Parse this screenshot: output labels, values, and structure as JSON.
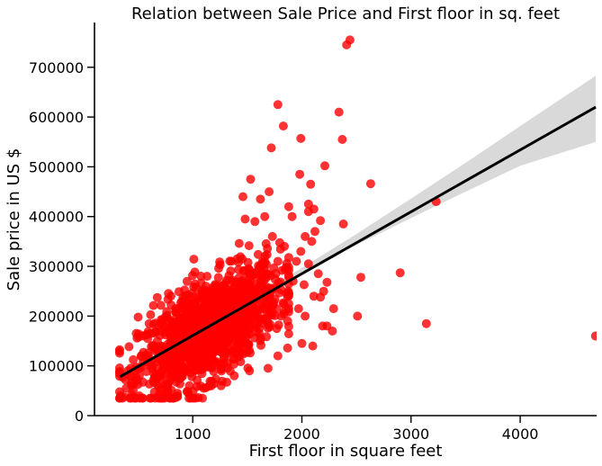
{
  "chart_data": {
    "type": "scatter",
    "title": "Relation between Sale Price and First floor in sq. feet",
    "xlabel": "First floor in square feet",
    "ylabel": "Sale price in US $",
    "xlim": [
      100,
      4700
    ],
    "ylim": [
      0,
      790000
    ],
    "x_ticks": [
      1000,
      2000,
      3000,
      4000
    ],
    "y_ticks": [
      0,
      100000,
      200000,
      300000,
      400000,
      500000,
      600000,
      700000
    ],
    "grid": false,
    "legend": "none",
    "colors": {
      "points": "#ff0000",
      "regression_line": "#000000",
      "confidence_band": "#cccccc"
    },
    "cluster": {
      "n": 1400,
      "x_center": 1150,
      "x_sd": 320,
      "slope": 118,
      "intercept": 38000,
      "resid_sd": 48000,
      "x_min": 330,
      "x_max": 1880,
      "y_min": 35000
    },
    "outliers": [
      [
        2440,
        755000
      ],
      [
        2410,
        745000
      ],
      [
        1780,
        625000
      ],
      [
        1830,
        582000
      ],
      [
        2340,
        610000
      ],
      [
        1720,
        538000
      ],
      [
        1990,
        557000
      ],
      [
        2370,
        555000
      ],
      [
        2210,
        502000
      ],
      [
        1980,
        485000
      ],
      [
        2630,
        466000
      ],
      [
        2080,
        465000
      ],
      [
        1530,
        475000
      ],
      [
        2380,
        385000
      ],
      [
        3230,
        430000
      ],
      [
        2170,
        392000
      ],
      [
        2060,
        425000
      ],
      [
        2110,
        415000
      ],
      [
        1910,
        400000
      ],
      [
        2060,
        410000
      ],
      [
        2030,
        360000
      ],
      [
        2090,
        350000
      ],
      [
        2150,
        285000
      ],
      [
        2230,
        268000
      ],
      [
        2200,
        250000
      ],
      [
        2110,
        240000
      ],
      [
        2170,
        238000
      ],
      [
        2290,
        215000
      ],
      [
        2540,
        278000
      ],
      [
        2230,
        180000
      ],
      [
        2510,
        200000
      ],
      [
        2900,
        287000
      ],
      [
        3140,
        185000
      ],
      [
        4690,
        160000
      ],
      [
        2000,
        145000
      ],
      [
        2100,
        140000
      ],
      [
        1870,
        190000
      ],
      [
        1810,
        200000
      ],
      [
        1970,
        215000
      ],
      [
        2020,
        263000
      ],
      [
        2060,
        305000
      ],
      [
        1990,
        330000
      ],
      [
        1950,
        310000
      ],
      [
        2120,
        370000
      ],
      [
        1880,
        420000
      ],
      [
        1700,
        450000
      ],
      [
        1620,
        435000
      ],
      [
        1570,
        390000
      ],
      [
        1480,
        395000
      ],
      [
        1660,
        400000
      ],
      [
        1730,
        360000
      ],
      [
        1840,
        340000
      ],
      [
        1460,
        440000
      ],
      [
        1780,
        310000
      ],
      [
        1920,
        270000
      ],
      [
        1860,
        245000
      ],
      [
        1690,
        95000
      ],
      [
        1780,
        120000
      ],
      [
        1520,
        90000
      ],
      [
        1380,
        80000
      ],
      [
        1260,
        60000
      ],
      [
        1100,
        55000
      ],
      [
        970,
        60000
      ],
      [
        860,
        45000
      ],
      [
        790,
        35000
      ],
      [
        690,
        38000
      ],
      [
        480,
        35000
      ],
      [
        340,
        40000
      ],
      [
        390,
        55000
      ],
      [
        440,
        60000
      ],
      [
        500,
        198000
      ],
      [
        1770,
        175000
      ],
      [
        2030,
        200000
      ],
      [
        2190,
        180000
      ],
      [
        2280,
        170000
      ]
    ],
    "regression": {
      "x0": 334,
      "x1": 4692,
      "y0": 78000,
      "y1": 620000
    },
    "confidence_band": {
      "x": [
        334,
        1000,
        1500,
        2000,
        2500,
        3000,
        3500,
        4000,
        4692
      ],
      "lower": [
        68000,
        158000,
        224000,
        286000,
        343000,
        397000,
        450000,
        502000,
        550000
      ],
      "upper": [
        90000,
        168000,
        232000,
        297000,
        365000,
        436000,
        508000,
        582000,
        683000
      ]
    }
  }
}
